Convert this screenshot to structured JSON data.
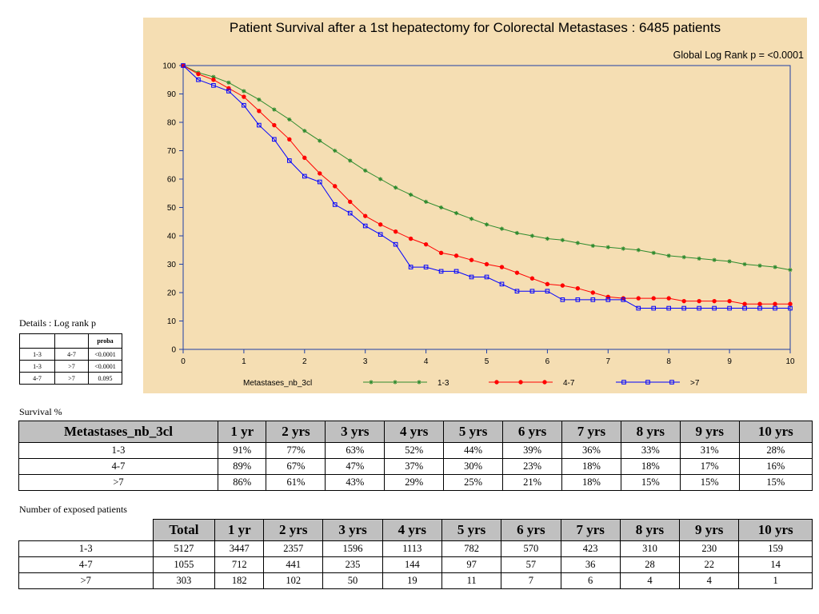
{
  "chart_data": {
    "type": "line",
    "title": "Patient Survival after a 1st hepatectomy for Colorectal Metastases : 6485 patients",
    "subtitle": "Global Log Rank p = <0.0001",
    "xlim": [
      0,
      10
    ],
    "ylim": [
      0,
      100
    ],
    "x_ticks": [
      "0",
      "1",
      "2",
      "3",
      "4",
      "5",
      "6",
      "7",
      "8",
      "9",
      "10"
    ],
    "y_ticks": [
      "0",
      "10",
      "20",
      "30",
      "40",
      "50",
      "60",
      "70",
      "80",
      "90",
      "100"
    ],
    "grid": false,
    "legend_title": "Metastases_nb_3cl",
    "legend_position": "bottom",
    "series": [
      {
        "name": "1-3",
        "color": "#2e8b2e",
        "marker": "star",
        "x": [
          0,
          0.25,
          0.5,
          0.75,
          1,
          1.25,
          1.5,
          1.75,
          2,
          2.25,
          2.5,
          2.75,
          3,
          3.25,
          3.5,
          3.75,
          4,
          4.25,
          4.5,
          4.75,
          5,
          5.25,
          5.5,
          5.75,
          6,
          6.25,
          6.5,
          6.75,
          7,
          7.25,
          7.5,
          7.75,
          8,
          8.25,
          8.5,
          8.75,
          9,
          9.25,
          9.5,
          9.75,
          10
        ],
        "y": [
          100,
          97.5,
          96,
          94,
          91,
          88,
          84.5,
          81,
          77,
          73.5,
          70,
          66.5,
          63,
          60,
          57,
          54.5,
          52,
          50,
          48,
          46,
          44,
          42.5,
          41,
          40,
          39,
          38.5,
          37.5,
          36.5,
          36,
          35.5,
          35,
          34,
          33,
          32.5,
          32,
          31.5,
          31,
          30,
          29.5,
          29,
          28
        ]
      },
      {
        "name": "4-7",
        "color": "#ff0000",
        "marker": "circle",
        "x": [
          0,
          0.25,
          0.5,
          0.75,
          1,
          1.25,
          1.5,
          1.75,
          2,
          2.25,
          2.5,
          2.75,
          3,
          3.25,
          3.5,
          3.75,
          4,
          4.25,
          4.5,
          4.75,
          5,
          5.25,
          5.5,
          5.75,
          6,
          6.25,
          6.5,
          6.75,
          7,
          7.25,
          7.5,
          7.75,
          8,
          8.25,
          8.5,
          8.75,
          9,
          9.25,
          9.5,
          9.75,
          10
        ],
        "y": [
          100,
          97,
          95,
          92,
          89,
          84,
          79,
          74,
          67.5,
          62,
          57.5,
          52,
          47,
          44,
          41.5,
          39,
          37,
          34,
          33,
          31.5,
          30,
          29,
          27,
          25,
          23,
          22.5,
          21.5,
          20,
          18.5,
          18,
          18,
          18,
          18,
          17,
          17,
          17,
          17,
          16,
          16,
          16,
          16
        ]
      },
      {
        "name": ">7",
        "color": "#0000ff",
        "marker": "square",
        "x": [
          0,
          0.25,
          0.5,
          0.75,
          1,
          1.25,
          1.5,
          1.75,
          2,
          2.25,
          2.5,
          2.75,
          3,
          3.25,
          3.5,
          3.75,
          4,
          4.25,
          4.5,
          4.75,
          5,
          5.25,
          5.5,
          5.75,
          6,
          6.25,
          6.5,
          6.75,
          7,
          7.25,
          7.5,
          7.75,
          8,
          8.25,
          8.5,
          8.75,
          9,
          9.25,
          9.5,
          9.75,
          10
        ],
        "y": [
          100,
          95,
          93,
          91,
          86,
          79,
          74,
          66.5,
          61,
          59,
          51,
          48,
          43.5,
          40.5,
          37,
          29,
          29,
          27.5,
          27.5,
          25.5,
          25.5,
          23,
          20.5,
          20.5,
          20.5,
          17.5,
          17.5,
          17.5,
          17.5,
          17.5,
          14.5,
          14.5,
          14.5,
          14.5,
          14.5,
          14.5,
          14.5,
          14.5,
          14.5,
          14.5,
          14.5
        ]
      }
    ]
  },
  "details": {
    "label": "Details : Log rank p",
    "header": [
      "",
      "",
      "proba"
    ],
    "rows": [
      [
        "1-3",
        "4-7",
        "<0.0001"
      ],
      [
        "1-3",
        ">7",
        "<0.0001"
      ],
      [
        "4-7",
        ">7",
        "0.095"
      ]
    ]
  },
  "survival": {
    "label": "Survival %",
    "columns": [
      "Metastases_nb_3cl",
      "1 yr",
      "2 yrs",
      "3 yrs",
      "4 yrs",
      "5 yrs",
      "6 yrs",
      "7 yrs",
      "8 yrs",
      "9 yrs",
      "10 yrs"
    ],
    "rows": [
      [
        "1-3",
        "91%",
        "77%",
        "63%",
        "52%",
        "44%",
        "39%",
        "36%",
        "33%",
        "31%",
        "28%"
      ],
      [
        "4-7",
        "89%",
        "67%",
        "47%",
        "37%",
        "30%",
        "23%",
        "18%",
        "18%",
        "17%",
        "16%"
      ],
      [
        ">7",
        "86%",
        "61%",
        "43%",
        "29%",
        "25%",
        "21%",
        "18%",
        "15%",
        "15%",
        "15%"
      ]
    ]
  },
  "exposed": {
    "label": "Number of exposed patients",
    "columns": [
      "",
      "Total",
      "1 yr",
      "2 yrs",
      "3 yrs",
      "4 yrs",
      "5 yrs",
      "6 yrs",
      "7 yrs",
      "8 yrs",
      "9 yrs",
      "10 yrs"
    ],
    "rows": [
      [
        "1-3",
        "5127",
        "3447",
        "2357",
        "1596",
        "1113",
        "782",
        "570",
        "423",
        "310",
        "230",
        "159"
      ],
      [
        "4-7",
        "1055",
        "712",
        "441",
        "235",
        "144",
        "97",
        "57",
        "36",
        "28",
        "22",
        "14"
      ],
      [
        ">7",
        "303",
        "182",
        "102",
        "50",
        "19",
        "11",
        "7",
        "6",
        "4",
        "4",
        "1"
      ]
    ]
  }
}
